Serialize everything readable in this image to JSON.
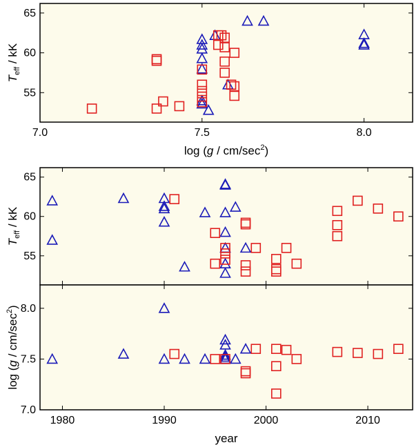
{
  "chart_data": [
    {
      "type": "scatter",
      "panel": "top",
      "xlabel": "log (g / cm/sec2)",
      "xlabel_parts": {
        "pre": "log (",
        "var": "g",
        "mid": " / cm/sec",
        "sup": "2",
        "post": ")"
      },
      "ylabel": "Teff / kK",
      "ylabel_parts": {
        "var": "T",
        "sub": "eff",
        "post": " / kK"
      },
      "xlim": [
        7.0,
        8.15
      ],
      "ylim": [
        51.3,
        66.2
      ],
      "xticks": [
        7.0,
        7.5,
        8.0
      ],
      "xtick_labels": [
        "7.0",
        "7.5",
        "8.0"
      ],
      "yticks": [
        55,
        60,
        65
      ],
      "ytick_labels": [
        "55",
        "60",
        "65"
      ],
      "grid": false,
      "series": [
        {
          "name": "triangles",
          "marker": "triangle",
          "color": "#1a1ab8",
          "points": [
            [
              7.5,
              53.6
            ],
            [
              7.5,
              54.0
            ],
            [
              7.5,
              58.0
            ],
            [
              7.5,
              59.3
            ],
            [
              7.5,
              60.5
            ],
            [
              7.5,
              61.0
            ],
            [
              7.5,
              61.7
            ],
            [
              7.52,
              52.8
            ],
            [
              7.54,
              62.2
            ],
            [
              7.58,
              56.0
            ],
            [
              7.64,
              64.0
            ],
            [
              7.69,
              64.0
            ],
            [
              8.0,
              61.0
            ],
            [
              8.0,
              61.2
            ],
            [
              8.0,
              62.3
            ]
          ]
        },
        {
          "name": "squares",
          "marker": "square",
          "color": "#e02020",
          "points": [
            [
              7.16,
              53.0
            ],
            [
              7.36,
              53.0
            ],
            [
              7.36,
              59.0
            ],
            [
              7.36,
              59.2
            ],
            [
              7.38,
              53.9
            ],
            [
              7.43,
              53.3
            ],
            [
              7.5,
              53.8
            ],
            [
              7.5,
              54.5
            ],
            [
              7.5,
              55.2
            ],
            [
              7.5,
              56.0
            ],
            [
              7.5,
              57.9
            ],
            [
              7.55,
              61.0
            ],
            [
              7.55,
              62.2
            ],
            [
              7.56,
              62.2
            ],
            [
              7.57,
              57.5
            ],
            [
              7.57,
              58.9
            ],
            [
              7.57,
              60.7
            ],
            [
              7.57,
              61.9
            ],
            [
              7.59,
              56.0
            ],
            [
              7.6,
              54.6
            ],
            [
              7.6,
              55.8
            ],
            [
              7.6,
              60.0
            ]
          ]
        }
      ]
    },
    {
      "type": "scatter",
      "panel": "middle",
      "xlabel": "",
      "ylabel": "Teff / kK",
      "ylabel_parts": {
        "var": "T",
        "sub": "eff",
        "post": " / kK"
      },
      "xlim": [
        1977.8,
        2014.4
      ],
      "ylim": [
        51.3,
        66.2
      ],
      "xticks": [
        1980,
        1990,
        2000,
        2010
      ],
      "yticks": [
        55,
        60,
        65
      ],
      "ytick_labels": [
        "55",
        "60",
        "65"
      ],
      "grid": false,
      "series": [
        {
          "name": "triangles",
          "marker": "triangle",
          "color": "#1a1ab8",
          "points": [
            [
              1979,
              57.0
            ],
            [
              1979,
              62.0
            ],
            [
              1986,
              62.3
            ],
            [
              1990,
              59.3
            ],
            [
              1990,
              61.0
            ],
            [
              1990,
              61.3
            ],
            [
              1990,
              62.3
            ],
            [
              1992,
              53.6
            ],
            [
              1994,
              60.5
            ],
            [
              1996,
              52.8
            ],
            [
              1996,
              54.0
            ],
            [
              1996,
              56.0
            ],
            [
              1996,
              58.0
            ],
            [
              1996,
              60.5
            ],
            [
              1996,
              64.0
            ],
            [
              1996,
              64.1
            ],
            [
              1997,
              61.2
            ],
            [
              1998,
              56.0
            ]
          ]
        },
        {
          "name": "squares",
          "marker": "square",
          "color": "#e02020",
          "points": [
            [
              1991,
              62.2
            ],
            [
              1995,
              54.0
            ],
            [
              1995,
              57.9
            ],
            [
              1996,
              54.5
            ],
            [
              1996,
              55.3
            ],
            [
              1996,
              56.0
            ],
            [
              1998,
              53.0
            ],
            [
              1998,
              53.8
            ],
            [
              1998,
              59.0
            ],
            [
              1998,
              59.2
            ],
            [
              1999,
              56.0
            ],
            [
              2001,
              53.0
            ],
            [
              2001,
              53.3
            ],
            [
              2001,
              54.6
            ],
            [
              2002,
              56.0
            ],
            [
              2003,
              54.0
            ],
            [
              2007,
              57.5
            ],
            [
              2007,
              58.9
            ],
            [
              2007,
              60.7
            ],
            [
              2009,
              62.0
            ],
            [
              2011,
              61.0
            ],
            [
              2013,
              60.0
            ]
          ]
        }
      ]
    },
    {
      "type": "scatter",
      "panel": "bottom",
      "xlabel": "year",
      "ylabel": "log (g / cm/sec2)",
      "ylabel_parts": {
        "pre": "log (",
        "var": "g",
        "mid": " / cm/sec",
        "sup": "2",
        "post": ")"
      },
      "xlim": [
        1977.8,
        2014.4
      ],
      "ylim": [
        7.0,
        8.23
      ],
      "xticks": [
        1980,
        1990,
        2000,
        2010
      ],
      "xtick_labels": [
        "1980",
        "1990",
        "2000",
        "2010"
      ],
      "yticks": [
        7.0,
        7.5,
        8.0
      ],
      "ytick_labels": [
        "7.0",
        "7.5",
        "8.0"
      ],
      "grid": false,
      "series": [
        {
          "name": "triangles",
          "marker": "triangle",
          "color": "#1a1ab8",
          "points": [
            [
              1979,
              7.5
            ],
            [
              1986,
              7.55
            ],
            [
              1990,
              7.5
            ],
            [
              1990,
              8.0
            ],
            [
              1992,
              7.5
            ],
            [
              1994,
              7.5
            ],
            [
              1996,
              7.5
            ],
            [
              1996,
              7.52
            ],
            [
              1996,
              7.54
            ],
            [
              1996,
              7.64
            ],
            [
              1996,
              7.69
            ],
            [
              1997,
              7.5
            ],
            [
              1998,
              7.6
            ]
          ]
        },
        {
          "name": "squares",
          "marker": "square",
          "color": "#e02020",
          "points": [
            [
              1991,
              7.55
            ],
            [
              1995,
              7.5
            ],
            [
              1996,
              7.5
            ],
            [
              1998,
              7.36
            ],
            [
              1998,
              7.38
            ],
            [
              1999,
              7.6
            ],
            [
              2001,
              7.16
            ],
            [
              2001,
              7.43
            ],
            [
              2001,
              7.6
            ],
            [
              2002,
              7.59
            ],
            [
              2003,
              7.5
            ],
            [
              2007,
              7.57
            ],
            [
              2009,
              7.56
            ],
            [
              2011,
              7.55
            ],
            [
              2013,
              7.6
            ]
          ]
        }
      ]
    }
  ]
}
